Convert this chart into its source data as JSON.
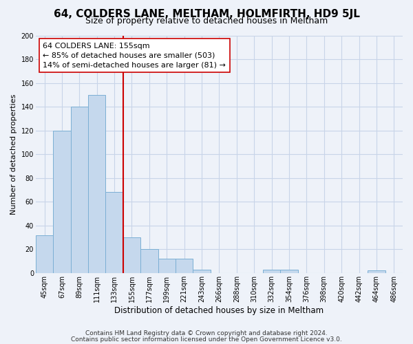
{
  "title": "64, COLDERS LANE, MELTHAM, HOLMFIRTH, HD9 5JL",
  "subtitle": "Size of property relative to detached houses in Meltham",
  "xlabel": "Distribution of detached houses by size in Meltham",
  "ylabel": "Number of detached properties",
  "categories": [
    "45sqm",
    "67sqm",
    "89sqm",
    "111sqm",
    "133sqm",
    "155sqm",
    "177sqm",
    "199sqm",
    "221sqm",
    "243sqm",
    "266sqm",
    "288sqm",
    "310sqm",
    "332sqm",
    "354sqm",
    "376sqm",
    "398sqm",
    "420sqm",
    "442sqm",
    "464sqm",
    "486sqm"
  ],
  "values": [
    32,
    120,
    140,
    150,
    68,
    30,
    20,
    12,
    12,
    3,
    0,
    0,
    0,
    3,
    3,
    0,
    0,
    0,
    0,
    2,
    0
  ],
  "bar_color": "#c5d8ed",
  "bar_edge_color": "#7bafd4",
  "vline_index": 5,
  "vline_color": "#cc0000",
  "annotation_lines": [
    "64 COLDERS LANE: 155sqm",
    "← 85% of detached houses are smaller (503)",
    "14% of semi-detached houses are larger (81) →"
  ],
  "ylim": [
    0,
    200
  ],
  "yticks": [
    0,
    20,
    40,
    60,
    80,
    100,
    120,
    140,
    160,
    180,
    200
  ],
  "footer_line1": "Contains HM Land Registry data © Crown copyright and database right 2024.",
  "footer_line2": "Contains public sector information licensed under the Open Government Licence v3.0.",
  "bg_color": "#eef2f9",
  "plot_bg_color": "#eef2f9",
  "grid_color": "#c8d4e8",
  "title_fontsize": 11,
  "subtitle_fontsize": 9,
  "xlabel_fontsize": 8.5,
  "ylabel_fontsize": 8,
  "tick_fontsize": 7,
  "annotation_fontsize": 8,
  "footer_fontsize": 6.5
}
